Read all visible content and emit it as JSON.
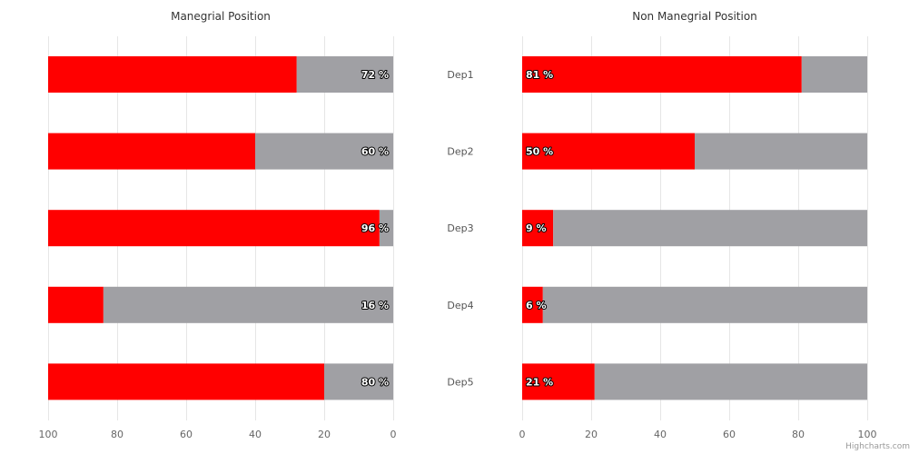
{
  "chart_data": {
    "type": "bar",
    "orientation": "horizontal",
    "categories": [
      "Dep1",
      "Dep2",
      "Dep3",
      "Dep4",
      "Dep5"
    ],
    "panels": [
      {
        "title": "Manegrial Position",
        "xlim": [
          100,
          0
        ],
        "xticks": [
          100,
          80,
          60,
          40,
          20,
          0
        ],
        "series": [
          {
            "color": "#a0a0a4",
            "values": [
              28,
              40,
              4,
              84,
              20
            ]
          },
          {
            "color": "#ff0000",
            "values": [
              72,
              60,
              96,
              16,
              80
            ]
          }
        ],
        "data_labels": [
          "72 %",
          "60 %",
          "96 %",
          "16 %",
          "80 %"
        ]
      },
      {
        "title": "Non Manegrial Position",
        "xlim": [
          0,
          100
        ],
        "xticks": [
          0,
          20,
          40,
          60,
          80,
          100
        ],
        "series": [
          {
            "color": "#ff0000",
            "values": [
              81,
              50,
              9,
              6,
              21
            ]
          },
          {
            "color": "#a0a0a4",
            "values": [
              19,
              50,
              91,
              94,
              79
            ]
          }
        ],
        "data_labels": [
          "81 %",
          "50 %",
          "9 %",
          "6 %",
          "21 %"
        ]
      }
    ],
    "grid": true,
    "credits": "Highcharts.com"
  }
}
